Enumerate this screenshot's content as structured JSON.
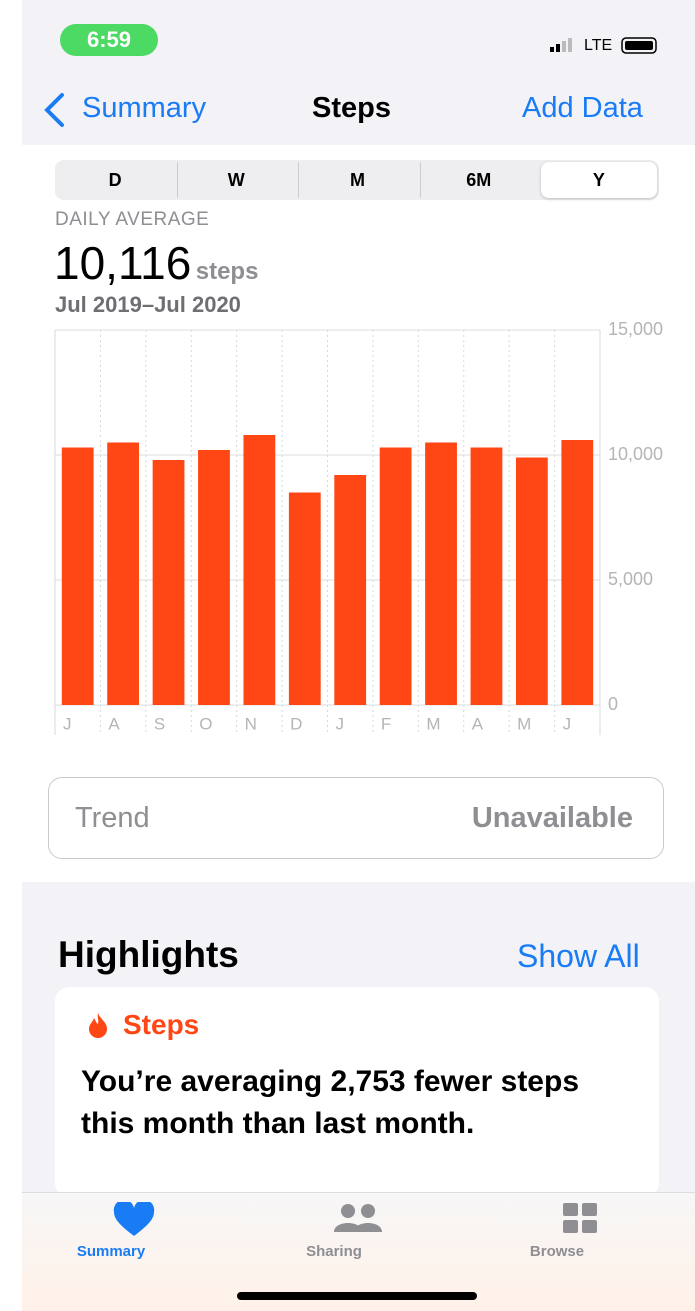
{
  "status_bar": {
    "time": "6:59",
    "network": "LTE"
  },
  "nav": {
    "back": "Summary",
    "title": "Steps",
    "action": "Add Data"
  },
  "segments": [
    "D",
    "W",
    "M",
    "6M",
    "Y"
  ],
  "summary": {
    "label": "DAILY AVERAGE",
    "value": "10,116",
    "unit": "steps",
    "range": "Jul 2019–Jul 2020"
  },
  "chart_data": {
    "type": "bar",
    "categories": [
      "J",
      "A",
      "S",
      "O",
      "N",
      "D",
      "J",
      "F",
      "M",
      "A",
      "M",
      "J"
    ],
    "values": [
      10300,
      10500,
      9800,
      10200,
      10800,
      8500,
      9200,
      10300,
      10500,
      10300,
      9900,
      10600
    ],
    "color": "#ff4615",
    "ylim": [
      0,
      15000
    ],
    "yticks": [
      0,
      {
        "value": 5000,
        "label": "5,000"
      },
      {
        "value": 10000,
        "label": "10,000"
      },
      {
        "value": 15000,
        "label": "15,000"
      }
    ],
    "grid": true
  },
  "trend": {
    "label": "Trend",
    "status": "Unavailable"
  },
  "highlights": {
    "title": "Highlights",
    "action": "Show All",
    "card": {
      "category": "Steps",
      "text": "You’re averaging 2,753 fewer steps this month than last month."
    }
  },
  "tab_bar": [
    "Summary",
    "Sharing",
    "Browse"
  ]
}
